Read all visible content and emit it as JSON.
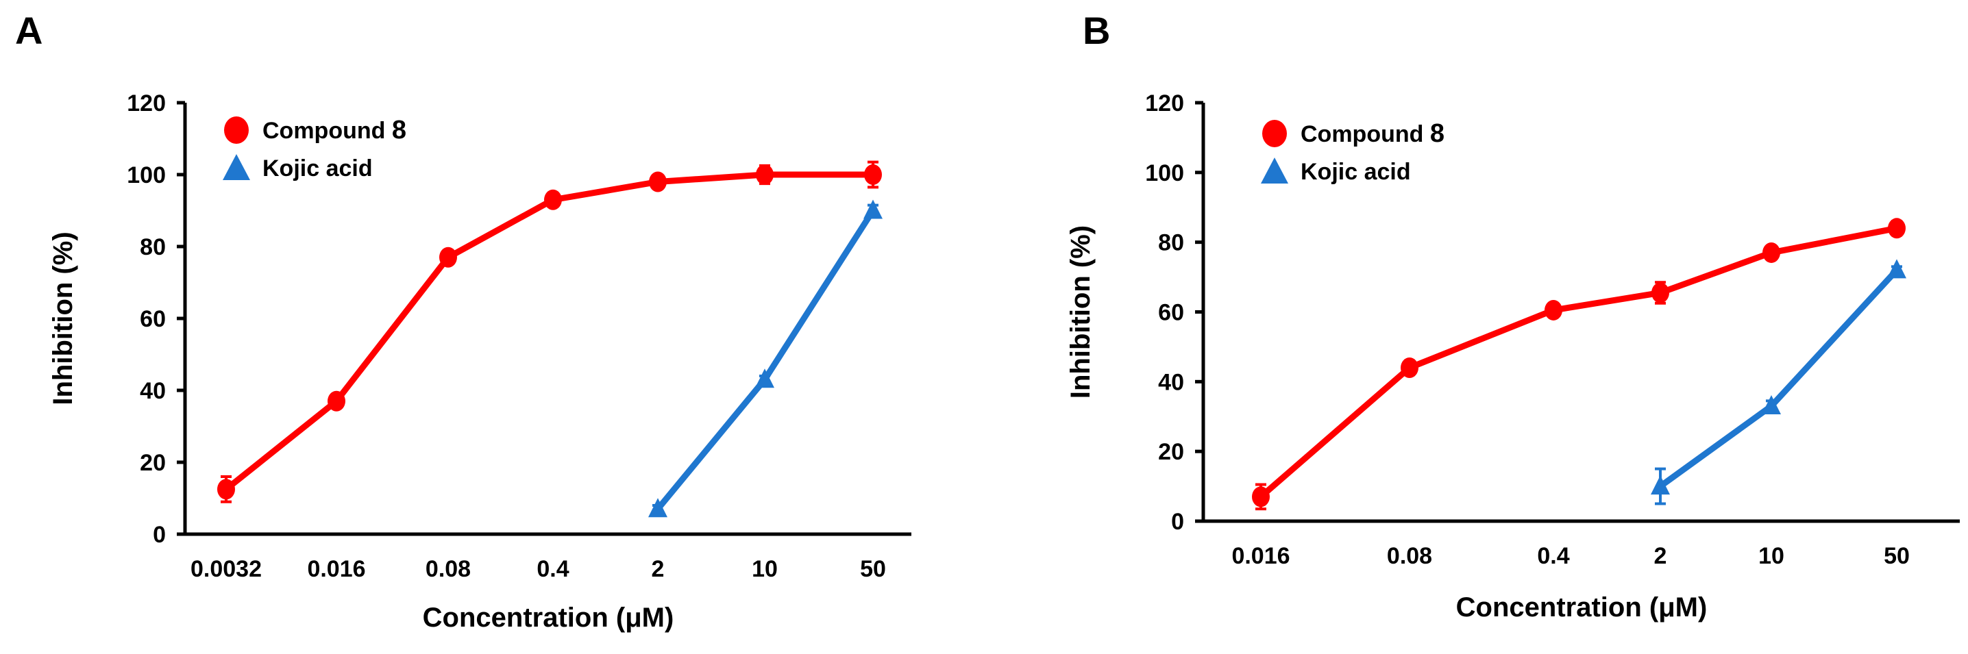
{
  "chart_data": [
    {
      "panel": "A",
      "type": "line",
      "xlabel": "Concentration (μM)",
      "ylabel": "Inhibition (%)",
      "ylim": [
        0,
        120
      ],
      "yticks": [
        "0",
        "20",
        "40",
        "60",
        "80",
        "100",
        "120"
      ],
      "categories": [
        "0.0032",
        "0.016",
        "0.08",
        "0.4",
        "2",
        "10",
        "50"
      ],
      "legend_position": "top-left",
      "series": [
        {
          "name": "Compound 8",
          "name_main": "Compound ",
          "name_num": "8",
          "color": "#ff0000",
          "marker": "circle",
          "values": [
            12.5,
            37,
            77,
            93,
            98,
            100,
            100
          ],
          "errors": [
            3.5,
            1,
            1,
            1,
            1,
            2.5,
            3.5
          ]
        },
        {
          "name": "Kojic acid",
          "color": "#1f77cf",
          "marker": "triangle",
          "values": [
            null,
            null,
            null,
            null,
            7,
            43,
            90
          ],
          "errors": [
            null,
            null,
            null,
            null,
            1,
            1,
            1.5
          ]
        }
      ]
    },
    {
      "panel": "B",
      "type": "line",
      "xlabel": "Concentration (μM)",
      "ylabel": "Inhibition (%)",
      "ylim": [
        0,
        120
      ],
      "yticks": [
        "0",
        "20",
        "40",
        "60",
        "80",
        "100",
        "120"
      ],
      "categories": [
        "0.016",
        "0.08",
        "0.4",
        "2",
        "10",
        "50"
      ],
      "legend_position": "top-left",
      "series": [
        {
          "name": "Compound 8",
          "name_main": "Compound ",
          "name_num": "8",
          "color": "#ff0000",
          "marker": "circle",
          "values": [
            7,
            44,
            60.5,
            65.5,
            77,
            84
          ],
          "errors": [
            3.5,
            2,
            1,
            3,
            1,
            2
          ]
        },
        {
          "name": "Kojic acid",
          "color": "#1f77cf",
          "marker": "triangle",
          "values": [
            null,
            null,
            null,
            10,
            33,
            72
          ],
          "errors": [
            null,
            null,
            null,
            5,
            1.5,
            1
          ]
        }
      ]
    }
  ]
}
